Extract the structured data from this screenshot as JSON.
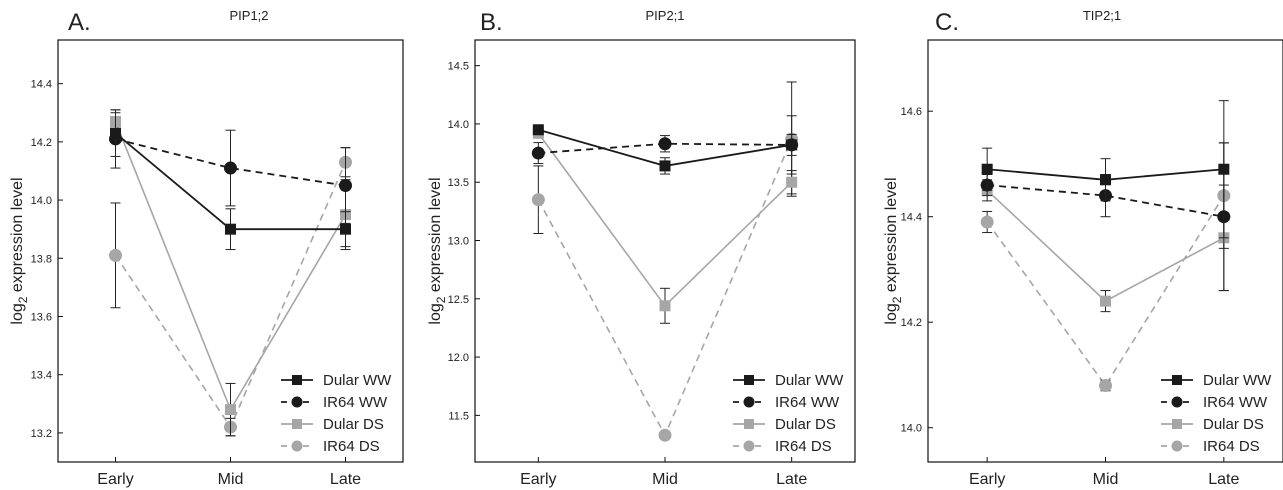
{
  "chart_data": [
    {
      "type": "line",
      "panel_label": "A.",
      "title": "PIP1;2",
      "ylabel": "log",
      "ylabel_sub": "2",
      "ylabel_suffix": " expression level",
      "categories": [
        "Early",
        "Mid",
        "Late"
      ],
      "ylim": [
        13.1,
        14.55
      ],
      "yticks": [
        13.2,
        13.4,
        13.6,
        13.8,
        14.0,
        14.2,
        14.4
      ],
      "series": [
        {
          "name": "Dular WW",
          "marker": "square",
          "color": "#1a1a1a",
          "dash": "solid",
          "values": [
            14.23,
            13.9,
            13.9
          ],
          "err": [
            0.08,
            0.07,
            0.06
          ]
        },
        {
          "name": "IR64 WW",
          "marker": "circle",
          "color": "#1a1a1a",
          "dash": "dashed",
          "values": [
            14.21,
            14.11,
            14.05
          ],
          "err": [
            0.1,
            0.13,
            0.13
          ]
        },
        {
          "name": "Dular DS",
          "marker": "square",
          "color": "#a6a6a6",
          "dash": "solid",
          "values": [
            14.27,
            13.28,
            13.95
          ],
          "err": [
            0.03,
            0.09,
            0.12
          ]
        },
        {
          "name": "IR64 DS",
          "marker": "circle",
          "color": "#a6a6a6",
          "dash": "dashed",
          "values": [
            13.81,
            13.22,
            14.13
          ],
          "err": [
            0.18,
            0.03,
            0.05
          ]
        }
      ],
      "grid": false,
      "legend_position": "bottom-right"
    },
    {
      "type": "line",
      "panel_label": "B.",
      "title": "PIP2;1",
      "ylabel": "log",
      "ylabel_sub": "2",
      "ylabel_suffix": " expression level",
      "categories": [
        "Early",
        "Mid",
        "Late"
      ],
      "ylim": [
        11.1,
        14.72
      ],
      "yticks": [
        11.5,
        12.0,
        12.5,
        13.0,
        13.5,
        14.0,
        14.5
      ],
      "series": [
        {
          "name": "Dular WW",
          "marker": "square",
          "color": "#1a1a1a",
          "dash": "solid",
          "values": [
            13.95,
            13.64,
            13.82
          ],
          "err": [
            0.03,
            0.07,
            0.25
          ]
        },
        {
          "name": "IR64 WW",
          "marker": "circle",
          "color": "#1a1a1a",
          "dash": "dashed",
          "values": [
            13.75,
            13.83,
            13.82
          ],
          "err": [
            0.09,
            0.07,
            0.09
          ]
        },
        {
          "name": "Dular DS",
          "marker": "square",
          "color": "#a6a6a6",
          "dash": "solid",
          "values": [
            13.92,
            12.44,
            13.5
          ],
          "err": [
            0.04,
            0.15,
            0.1
          ]
        },
        {
          "name": "IR64 DS",
          "marker": "circle",
          "color": "#a6a6a6",
          "dash": "dashed",
          "values": [
            13.35,
            11.33,
            13.87
          ],
          "err": [
            0.29,
            0.02,
            0.49
          ]
        }
      ],
      "grid": false,
      "legend_position": "bottom-right"
    },
    {
      "type": "line",
      "panel_label": "C.",
      "title": "TIP2;1",
      "ylabel": "log",
      "ylabel_sub": "2",
      "ylabel_suffix": " expression level",
      "categories": [
        "Early",
        "Mid",
        "Late"
      ],
      "ylim": [
        13.935,
        14.735
      ],
      "yticks": [
        14.0,
        14.2,
        14.4,
        14.6
      ],
      "series": [
        {
          "name": "Dular WW",
          "marker": "square",
          "color": "#1a1a1a",
          "dash": "solid",
          "values": [
            14.49,
            14.47,
            14.49
          ],
          "err": [
            0.04,
            0.04,
            0.13
          ]
        },
        {
          "name": "IR64 WW",
          "marker": "circle",
          "color": "#1a1a1a",
          "dash": "dashed",
          "values": [
            14.46,
            14.44,
            14.4
          ],
          "err": [
            0.02,
            0.04,
            0.14
          ]
        },
        {
          "name": "Dular DS",
          "marker": "square",
          "color": "#a6a6a6",
          "dash": "solid",
          "values": [
            14.45,
            14.24,
            14.36
          ],
          "err": [
            0.02,
            0.02,
            0.1
          ]
        },
        {
          "name": "IR64 DS",
          "marker": "circle",
          "color": "#a6a6a6",
          "dash": "dashed",
          "values": [
            14.39,
            14.08,
            14.44
          ],
          "err": [
            0.02,
            0.01,
            0.1
          ]
        }
      ],
      "grid": false,
      "legend_position": "bottom-right"
    }
  ]
}
